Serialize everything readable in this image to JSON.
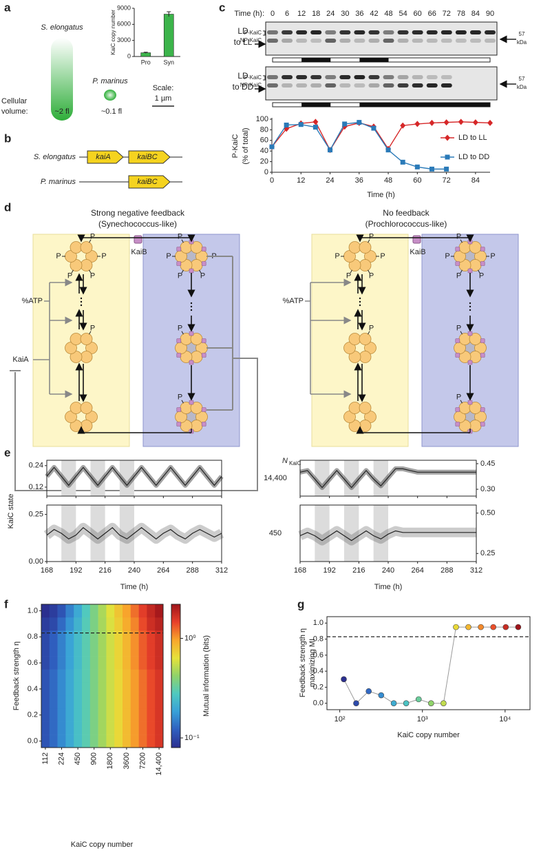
{
  "a": {
    "label": "a",
    "species1": "S. elongatus",
    "species2": "P. marinus",
    "volume_label": [
      "Cellular",
      "volume:"
    ],
    "volume1": "~2 fl",
    "volume2": "~0.1 fl",
    "scale_label": "Scale:",
    "scale_value": "1 µm",
    "bar_chart": {
      "type": "bar",
      "ylabel": "KaiC copy number",
      "categories": [
        "Pro",
        "Syn"
      ],
      "values": [
        700,
        7900
      ],
      "errors": [
        100,
        450
      ],
      "color": "#3cb44b",
      "ylim": [
        0,
        9000
      ],
      "yticks": [
        0,
        3000,
        6000,
        9000
      ]
    }
  },
  "b": {
    "label": "b",
    "rows": [
      {
        "species": "S. elongatus",
        "genes": [
          "kaiA",
          "kaiBC"
        ]
      },
      {
        "species": "P. marinus",
        "genes": [
          "kaiBC"
        ]
      }
    ]
  },
  "c": {
    "label": "c",
    "time_label": "Time (h):",
    "blot_times": [
      0,
      6,
      12,
      18,
      24,
      30,
      36,
      42,
      48,
      54,
      60,
      66,
      72,
      78,
      84,
      90
    ],
    "blots": [
      {
        "condition": [
          "LD",
          "to LL"
        ],
        "dark": [
          [
            12,
            24
          ],
          [
            36,
            48
          ]
        ]
      },
      {
        "condition": [
          "LD",
          "to DD"
        ],
        "dark": [
          [
            12,
            24
          ],
          [
            36,
            90
          ]
        ]
      }
    ],
    "band_labels": [
      "P-KaiC",
      "NP-KaiC"
    ],
    "marker": [
      "57",
      "kDa"
    ],
    "chart_data": {
      "type": "line",
      "ylabel": [
        "P-KaiC",
        "(% of total)"
      ],
      "xlabel": "Time (h)",
      "xlim": [
        0,
        90
      ],
      "xticks": [
        0,
        12,
        24,
        36,
        48,
        60,
        72,
        84
      ],
      "ylim": [
        0,
        100
      ],
      "yticks": [
        0,
        20,
        40,
        60,
        80,
        100
      ],
      "series": [
        {
          "name": "LD to LL",
          "color": "#d62728",
          "marker": "diamond",
          "x": [
            0,
            6,
            12,
            18,
            24,
            30,
            36,
            42,
            48,
            54,
            60,
            66,
            72,
            78,
            84,
            90
          ],
          "values": [
            48,
            82,
            92,
            95,
            42,
            86,
            93,
            86,
            44,
            88,
            91,
            93,
            94,
            95,
            94,
            93
          ]
        },
        {
          "name": "LD to DD",
          "color": "#2a7ab8",
          "marker": "square",
          "x": [
            0,
            6,
            12,
            18,
            24,
            30,
            36,
            42,
            48,
            54,
            60,
            66,
            72
          ],
          "values": [
            48,
            89,
            90,
            85,
            42,
            91,
            94,
            83,
            42,
            19,
            10,
            6,
            6
          ]
        }
      ]
    }
  },
  "d": {
    "label": "d",
    "models": [
      {
        "title": "Strong negative feedback",
        "subtitle": "(Synechococcus-like)",
        "feedback": true
      },
      {
        "title": "No feedback",
        "subtitle": "(Prochlorococcus-like)",
        "feedback": false
      }
    ],
    "kaib": "KaiB",
    "atp": "%ATP",
    "kaia": "KaiA",
    "phospho": "P"
  },
  "e": {
    "label": "e",
    "x": [
      168,
      174,
      180,
      186,
      192,
      198,
      204,
      210,
      216,
      222,
      228,
      234,
      240,
      246,
      252,
      258,
      264,
      270,
      276,
      282,
      288,
      294,
      300,
      306,
      312
    ],
    "xlim": [
      168,
      312
    ],
    "xticks": [
      168,
      192,
      216,
      240,
      264,
      288,
      312
    ],
    "xlabel": "Time (h)",
    "ylabel": "KaiC state",
    "n_label": "N",
    "n_sub": "KaiC",
    "dark": [
      [
        180,
        192
      ],
      [
        204,
        216
      ],
      [
        228,
        240
      ]
    ],
    "rows": [
      {
        "n": "14,400",
        "plots": [
          {
            "ylim": [
              0.07,
              0.27
            ],
            "yticks": [
              0.12,
              0.24
            ],
            "values": [
              0.18,
              0.23,
              0.18,
              0.13,
              0.18,
              0.23,
              0.18,
              0.13,
              0.18,
              0.23,
              0.18,
              0.13,
              0.18,
              0.23,
              0.18,
              0.13,
              0.18,
              0.23,
              0.18,
              0.13,
              0.18,
              0.23,
              0.18,
              0.13,
              0.18
            ]
          },
          {
            "ylim": [
              0.26,
              0.47
            ],
            "yticks": [
              {
                "value": 0.3,
                "label": "0.30"
              },
              0.45
            ],
            "values": [
              0.4,
              0.41,
              0.36,
              0.31,
              0.36,
              0.41,
              0.36,
              0.31,
              0.36,
              0.41,
              0.36,
              0.32,
              0.37,
              0.42,
              0.42,
              0.41,
              0.4,
              0.4,
              0.4,
              0.4,
              0.4,
              0.4,
              0.4,
              0.4,
              0.4
            ]
          }
        ]
      },
      {
        "n": "450",
        "plots": [
          {
            "ylim": [
              0,
              0.3
            ],
            "yticks": [
              {
                "value": 0,
                "label": "0.00"
              },
              0.25
            ],
            "values": [
              0.14,
              0.17,
              0.15,
              0.12,
              0.14,
              0.18,
              0.15,
              0.12,
              0.15,
              0.18,
              0.14,
              0.12,
              0.15,
              0.18,
              0.15,
              0.12,
              0.15,
              0.17,
              0.14,
              0.12,
              0.15,
              0.17,
              0.15,
              0.13,
              0.15
            ]
          },
          {
            "ylim": [
              0.2,
              0.55
            ],
            "yticks": [
              0.25,
              {
                "value": 0.5,
                "label": "0.50"
              }
            ],
            "values": [
              0.36,
              0.38,
              0.36,
              0.33,
              0.36,
              0.39,
              0.36,
              0.33,
              0.36,
              0.39,
              0.36,
              0.34,
              0.37,
              0.39,
              0.38,
              0.38,
              0.38,
              0.38,
              0.38,
              0.38,
              0.38,
              0.38,
              0.38,
              0.38,
              0.38
            ]
          }
        ]
      }
    ]
  },
  "f": {
    "label": "f",
    "chart_data": {
      "type": "heatmap",
      "xlabel": "KaiC copy number",
      "ylabel": "Feedback strength η",
      "colorbar_label": "Mutual information (bits)",
      "copy_numbers": [
        112,
        158,
        224,
        317,
        450,
        636,
        900,
        1273,
        1800,
        2546,
        3600,
        5091,
        7200,
        10182,
        14400
      ],
      "xticks": [
        112,
        224,
        450,
        900,
        1800,
        3600,
        7200,
        {
          "value": 14400,
          "label": "14,400"
        }
      ],
      "eta": [
        0,
        0.1,
        0.2,
        0.3,
        0.4,
        0.5,
        0.6,
        0.7,
        0.8,
        0.9,
        1
      ],
      "ylim": [
        -0.05,
        1.05
      ],
      "yticks": [
        {
          "value": 0,
          "label": "0.0"
        },
        0.2,
        0.4,
        0.6,
        0.8,
        {
          "value": 1,
          "label": "1.0"
        }
      ],
      "values": [
        [
          0.11,
          0.13,
          0.16,
          0.2,
          0.25,
          0.3,
          0.37,
          0.46,
          0.56,
          0.68,
          0.83,
          1.0,
          1.2,
          1.4,
          1.6
        ],
        [
          0.11,
          0.13,
          0.16,
          0.2,
          0.25,
          0.3,
          0.37,
          0.46,
          0.56,
          0.68,
          0.83,
          1.0,
          1.2,
          1.4,
          1.6
        ],
        [
          0.11,
          0.13,
          0.16,
          0.2,
          0.25,
          0.3,
          0.37,
          0.46,
          0.56,
          0.68,
          0.83,
          1.0,
          1.2,
          1.4,
          1.6
        ],
        [
          0.11,
          0.13,
          0.16,
          0.2,
          0.25,
          0.3,
          0.37,
          0.46,
          0.56,
          0.68,
          0.83,
          1.0,
          1.2,
          1.4,
          1.6
        ],
        [
          0.11,
          0.13,
          0.16,
          0.2,
          0.25,
          0.3,
          0.37,
          0.46,
          0.56,
          0.68,
          0.83,
          1.0,
          1.2,
          1.4,
          1.6
        ],
        [
          0.11,
          0.13,
          0.16,
          0.2,
          0.25,
          0.3,
          0.37,
          0.46,
          0.56,
          0.68,
          0.83,
          1.0,
          1.2,
          1.4,
          1.6
        ],
        [
          0.1,
          0.12,
          0.15,
          0.19,
          0.24,
          0.3,
          0.37,
          0.46,
          0.57,
          0.7,
          0.86,
          1.05,
          1.3,
          1.5,
          1.7
        ],
        [
          0.1,
          0.12,
          0.15,
          0.19,
          0.24,
          0.3,
          0.37,
          0.46,
          0.57,
          0.7,
          0.86,
          1.05,
          1.3,
          1.5,
          1.7
        ],
        [
          0.1,
          0.12,
          0.15,
          0.19,
          0.24,
          0.3,
          0.37,
          0.46,
          0.57,
          0.7,
          0.86,
          1.05,
          1.3,
          1.5,
          1.7
        ],
        [
          0.09,
          0.1,
          0.13,
          0.17,
          0.22,
          0.29,
          0.37,
          0.47,
          0.6,
          0.74,
          0.92,
          1.1,
          1.4,
          1.7,
          1.9
        ],
        [
          0.08,
          0.09,
          0.11,
          0.15,
          0.2,
          0.28,
          0.37,
          0.48,
          0.62,
          0.78,
          0.97,
          1.2,
          1.5,
          1.8,
          2.1
        ]
      ],
      "clim": [
        0.08,
        2.2
      ],
      "log_color": true,
      "cticks": [
        {
          "value": 0.1,
          "label": "10⁻¹"
        },
        {
          "value": 1,
          "label": "10⁰"
        }
      ],
      "threshold": 0.83,
      "colormap": [
        "#2b2f8f",
        "#2f5fbf",
        "#38a0d8",
        "#4fc9c0",
        "#8fd36a",
        "#e6e23a",
        "#f8a62c",
        "#e8402a",
        "#9e141a"
      ]
    }
  },
  "g": {
    "label": "g",
    "chart_data": {
      "type": "scatter",
      "xlabel": "KaiC copy number",
      "ylabel": [
        "Feedback strength η",
        "maximizing MI"
      ],
      "x": [
        112,
        158,
        224,
        317,
        450,
        636,
        900,
        1273,
        1800,
        2546,
        3600,
        5091,
        7200,
        10182,
        14400
      ],
      "values": [
        0.3,
        0,
        0.15,
        0.1,
        0,
        0,
        0.05,
        0,
        0,
        0.95,
        0.95,
        0.95,
        0.95,
        0.95,
        0.95
      ],
      "xlim": [
        70,
        20000
      ],
      "log_x": true,
      "xticks": [
        {
          "value": 100,
          "label": "10²"
        },
        {
          "value": 1000,
          "label": "10³"
        },
        {
          "value": 10000,
          "label": "10⁴"
        }
      ],
      "ylim": [
        -0.08,
        1.08
      ],
      "yticks": [
        {
          "value": 0,
          "label": "0.0"
        },
        0.2,
        0.4,
        0.6,
        0.8,
        {
          "value": 1,
          "label": "1.0"
        }
      ],
      "threshold": 0.83,
      "line_color": "#999999"
    }
  }
}
